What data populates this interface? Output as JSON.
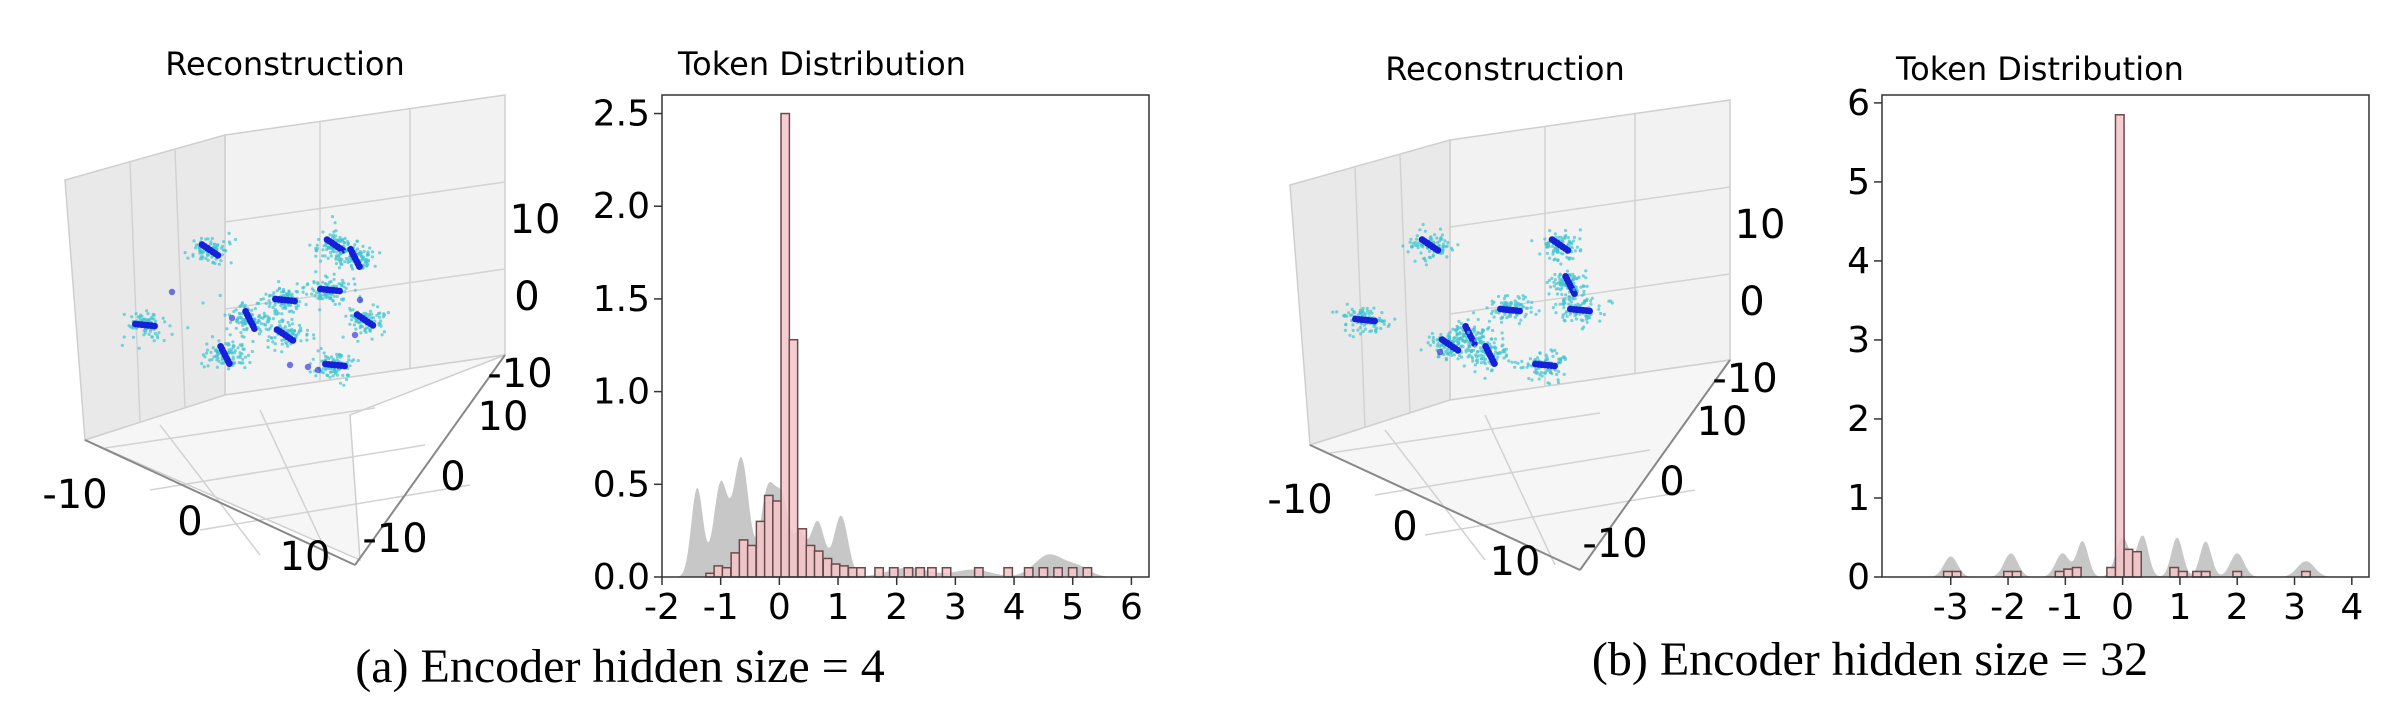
{
  "chart_data": [
    {
      "type": "scatter",
      "title": "Reconstruction",
      "x_ticks": [
        "-10",
        "0",
        "10"
      ],
      "y_ticks": [
        "-10",
        "0",
        "10"
      ],
      "z_ticks": [
        "10",
        "0",
        "-10"
      ]
    },
    {
      "type": "bar",
      "title": "Token Distribution",
      "xlim": [
        -2,
        6.3
      ],
      "ylim": [
        0,
        2.6
      ],
      "x_ticks": [
        "-2",
        "-1",
        "0",
        "1",
        "2",
        "3",
        "4",
        "5",
        "6"
      ],
      "y_ticks": [
        "0.0",
        "0.5",
        "1.0",
        "1.5",
        "2.0",
        "2.5"
      ],
      "bin_width": 0.143,
      "bins": [
        {
          "x": -1.18,
          "h": 0.02
        },
        {
          "x": -1.04,
          "h": 0.06
        },
        {
          "x": -0.9,
          "h": 0.05
        },
        {
          "x": -0.75,
          "h": 0.13
        },
        {
          "x": -0.61,
          "h": 0.2
        },
        {
          "x": -0.47,
          "h": 0.17
        },
        {
          "x": -0.32,
          "h": 0.3
        },
        {
          "x": -0.18,
          "h": 0.44
        },
        {
          "x": -0.04,
          "h": 0.41
        },
        {
          "x": 0.1,
          "h": 2.5
        },
        {
          "x": 0.24,
          "h": 1.28
        },
        {
          "x": 0.39,
          "h": 0.26
        },
        {
          "x": 0.53,
          "h": 0.17
        },
        {
          "x": 0.67,
          "h": 0.14
        },
        {
          "x": 0.82,
          "h": 0.1
        },
        {
          "x": 0.96,
          "h": 0.07
        },
        {
          "x": 1.1,
          "h": 0.06
        },
        {
          "x": 1.25,
          "h": 0.05
        },
        {
          "x": 1.39,
          "h": 0.05
        },
        {
          "x": 1.7,
          "h": 0.05
        },
        {
          "x": 1.95,
          "h": 0.05
        },
        {
          "x": 2.2,
          "h": 0.05
        },
        {
          "x": 2.4,
          "h": 0.05
        },
        {
          "x": 2.6,
          "h": 0.05
        },
        {
          "x": 2.85,
          "h": 0.05
        },
        {
          "x": 3.4,
          "h": 0.05
        },
        {
          "x": 3.9,
          "h": 0.05
        },
        {
          "x": 4.25,
          "h": 0.05
        },
        {
          "x": 4.5,
          "h": 0.05
        },
        {
          "x": 4.75,
          "h": 0.05
        },
        {
          "x": 5.0,
          "h": 0.05
        },
        {
          "x": 5.25,
          "h": 0.05
        }
      ],
      "density_peaks": [
        {
          "x": -1.4,
          "h": 0.48,
          "w": 0.1
        },
        {
          "x": -1.0,
          "h": 0.5,
          "w": 0.12
        },
        {
          "x": -0.65,
          "h": 0.64,
          "w": 0.13
        },
        {
          "x": -0.2,
          "h": 0.45,
          "w": 0.12
        },
        {
          "x": 0.05,
          "h": 0.4,
          "w": 0.12
        },
        {
          "x": 0.35,
          "h": 0.22,
          "w": 0.1
        },
        {
          "x": 0.65,
          "h": 0.3,
          "w": 0.12
        },
        {
          "x": 1.05,
          "h": 0.33,
          "w": 0.12
        },
        {
          "x": 2.2,
          "h": 0.05,
          "w": 0.35
        },
        {
          "x": 3.3,
          "h": 0.04,
          "w": 0.3
        },
        {
          "x": 4.6,
          "h": 0.12,
          "w": 0.25
        },
        {
          "x": 5.1,
          "h": 0.05,
          "w": 0.2
        }
      ]
    },
    {
      "type": "scatter",
      "title": "Reconstruction",
      "x_ticks": [
        "-10",
        "0",
        "10"
      ],
      "y_ticks": [
        "-10",
        "0",
        "10"
      ],
      "z_ticks": [
        "10",
        "0",
        "-10"
      ]
    },
    {
      "type": "bar",
      "title": "Token Distribution",
      "xlim": [
        -4.2,
        4.3
      ],
      "ylim": [
        0,
        6.1
      ],
      "x_ticks": [
        "-3",
        "-2",
        "-1",
        "0",
        "1",
        "2",
        "3",
        "4"
      ],
      "y_ticks": [
        "0",
        "1",
        "2",
        "3",
        "4",
        "5",
        "6"
      ],
      "bin_width": 0.15,
      "bins": [
        {
          "x": -3.05,
          "h": 0.07
        },
        {
          "x": -2.9,
          "h": 0.07
        },
        {
          "x": -2.0,
          "h": 0.07
        },
        {
          "x": -1.85,
          "h": 0.07
        },
        {
          "x": -1.1,
          "h": 0.07
        },
        {
          "x": -0.95,
          "h": 0.1
        },
        {
          "x": -0.8,
          "h": 0.12
        },
        {
          "x": -0.2,
          "h": 0.12
        },
        {
          "x": -0.05,
          "h": 5.85
        },
        {
          "x": 0.1,
          "h": 0.35
        },
        {
          "x": 0.25,
          "h": 0.32
        },
        {
          "x": 0.9,
          "h": 0.12
        },
        {
          "x": 1.05,
          "h": 0.07
        },
        {
          "x": 1.3,
          "h": 0.07
        },
        {
          "x": 1.45,
          "h": 0.07
        },
        {
          "x": 2.0,
          "h": 0.07
        },
        {
          "x": 3.2,
          "h": 0.07
        }
      ],
      "density_peaks": [
        {
          "x": -3.0,
          "h": 0.26,
          "w": 0.12
        },
        {
          "x": -1.95,
          "h": 0.3,
          "w": 0.12
        },
        {
          "x": -1.05,
          "h": 0.3,
          "w": 0.12
        },
        {
          "x": -0.7,
          "h": 0.45,
          "w": 0.1
        },
        {
          "x": 0.0,
          "h": 0.5,
          "w": 0.12
        },
        {
          "x": 0.35,
          "h": 0.52,
          "w": 0.1
        },
        {
          "x": 0.95,
          "h": 0.5,
          "w": 0.1
        },
        {
          "x": 1.45,
          "h": 0.45,
          "w": 0.1
        },
        {
          "x": 2.0,
          "h": 0.3,
          "w": 0.12
        },
        {
          "x": 3.2,
          "h": 0.2,
          "w": 0.15
        }
      ]
    }
  ],
  "captions": {
    "a": "(a) Encoder hidden size = 4",
    "b": "(b) Encoder hidden size = 32"
  },
  "colors": {
    "bar_fill": "#f4c6c9",
    "bar_edge": "#6b4a4c",
    "density": "#bdbdbd",
    "cluster_fine": "#3fc5cf",
    "cluster_core": "#1520d8",
    "pane": "#efefef",
    "grid": "#d2d2d2"
  }
}
